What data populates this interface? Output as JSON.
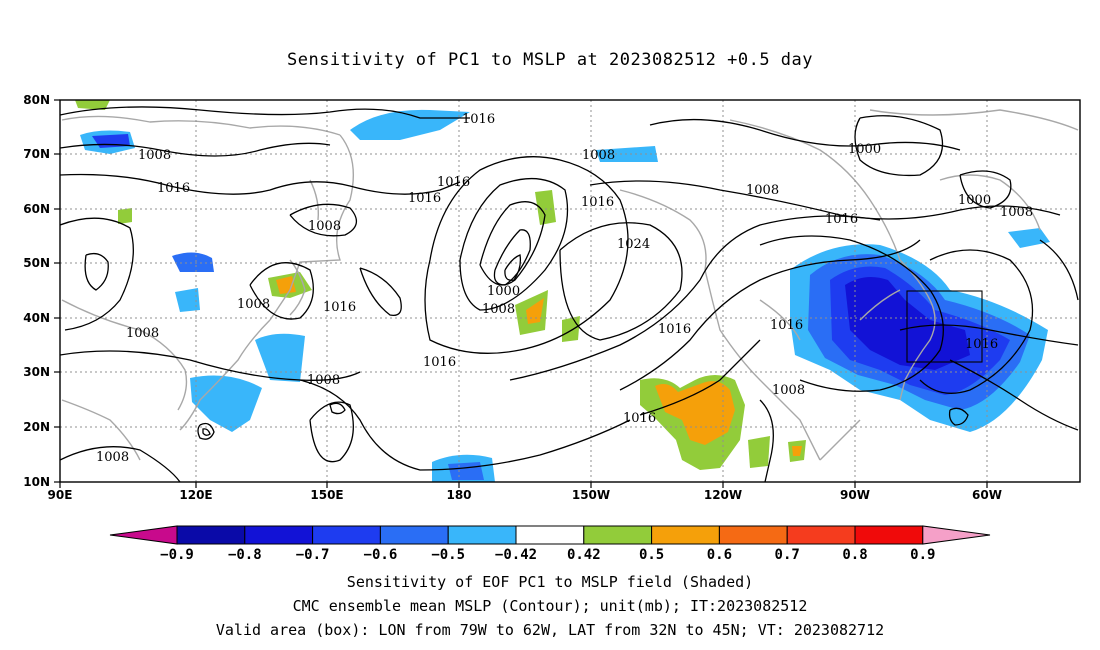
{
  "title": "Sensitivity of PC1 to MSLP at 2023082512 +0.5 day",
  "lat_ticks": [
    "80N",
    "70N",
    "60N",
    "50N",
    "40N",
    "30N",
    "20N",
    "10N"
  ],
  "lon_ticks": [
    "90E",
    "120E",
    "150E",
    "180",
    "150W",
    "120W",
    "90W",
    "60W"
  ],
  "contour_labels": [
    "1016",
    "1008",
    "1008",
    "1016",
    "1016",
    "1016",
    "1008",
    "1000",
    "1008",
    "1016",
    "1016",
    "1008",
    "1016",
    "1016",
    "1024",
    "1008",
    "1016",
    "1000",
    "1008",
    "1016",
    "1016",
    "1008",
    "1008",
    "1016",
    "1000",
    "1008"
  ],
  "colorbar": {
    "labels": [
      "−0.9",
      "−0.8",
      "−0.7",
      "−0.6",
      "−0.5",
      "−0.42",
      "0.42",
      "0.5",
      "0.6",
      "0.7",
      "0.8",
      "0.9"
    ],
    "colors": [
      "#0a0aa8",
      "#1212d6",
      "#1e3cf0",
      "#2a6ef5",
      "#39b6fa",
      "#ffffff",
      "#92cc3a",
      "#f5a00a",
      "#f56a14",
      "#f53c1e",
      "#f00a0a"
    ],
    "low_arrow_color": "#c80a8c",
    "high_arrow_color": "#f5a0c8"
  },
  "footer": {
    "line1": "Sensitivity of EOF PC1 to MSLP field (Shaded)",
    "line2": "CMC ensemble mean MSLP (Contour); unit(mb); IT:2023082512",
    "line3": "Valid area (box): LON from 79W to 62W, LAT from 32N to 45N; VT: 2023082712"
  }
}
